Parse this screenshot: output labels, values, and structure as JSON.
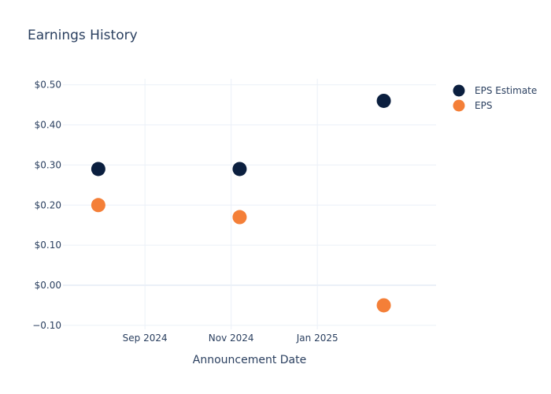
{
  "chart_data": {
    "type": "scatter",
    "title": "Earnings History",
    "xlabel": "Announcement Date",
    "ylabel": "",
    "ylim": [
      -0.11,
      0.515
    ],
    "xlim": [
      "2024-07-05",
      "2025-03-26"
    ],
    "x_ticks": [
      {
        "value": "2024-09-01",
        "label": "Sep 2024"
      },
      {
        "value": "2024-11-01",
        "label": "Nov 2024"
      },
      {
        "value": "2025-01-01",
        "label": "Jan 2025"
      }
    ],
    "y_ticks": [
      {
        "value": 0.5,
        "label": "$0.50"
      },
      {
        "value": 0.4,
        "label": "$0.40"
      },
      {
        "value": 0.3,
        "label": "$0.30"
      },
      {
        "value": 0.2,
        "label": "$0.20"
      },
      {
        "value": 0.1,
        "label": "$0.10"
      },
      {
        "value": 0.0,
        "label": "$0.00"
      },
      {
        "value": -0.1,
        "label": "−0.10"
      }
    ],
    "grid": true,
    "legend_position": "top-right",
    "series": [
      {
        "name": "EPS Estimate",
        "color": "#0b1f3f",
        "points": [
          {
            "x": "2024-07-30",
            "y": 0.29
          },
          {
            "x": "2024-11-07",
            "y": 0.29
          },
          {
            "x": "2025-02-17",
            "y": 0.46
          }
        ]
      },
      {
        "name": "EPS",
        "color": "#f47f38",
        "points": [
          {
            "x": "2024-07-30",
            "y": 0.2
          },
          {
            "x": "2024-11-07",
            "y": 0.17
          },
          {
            "x": "2025-02-17",
            "y": -0.05
          }
        ]
      }
    ]
  }
}
